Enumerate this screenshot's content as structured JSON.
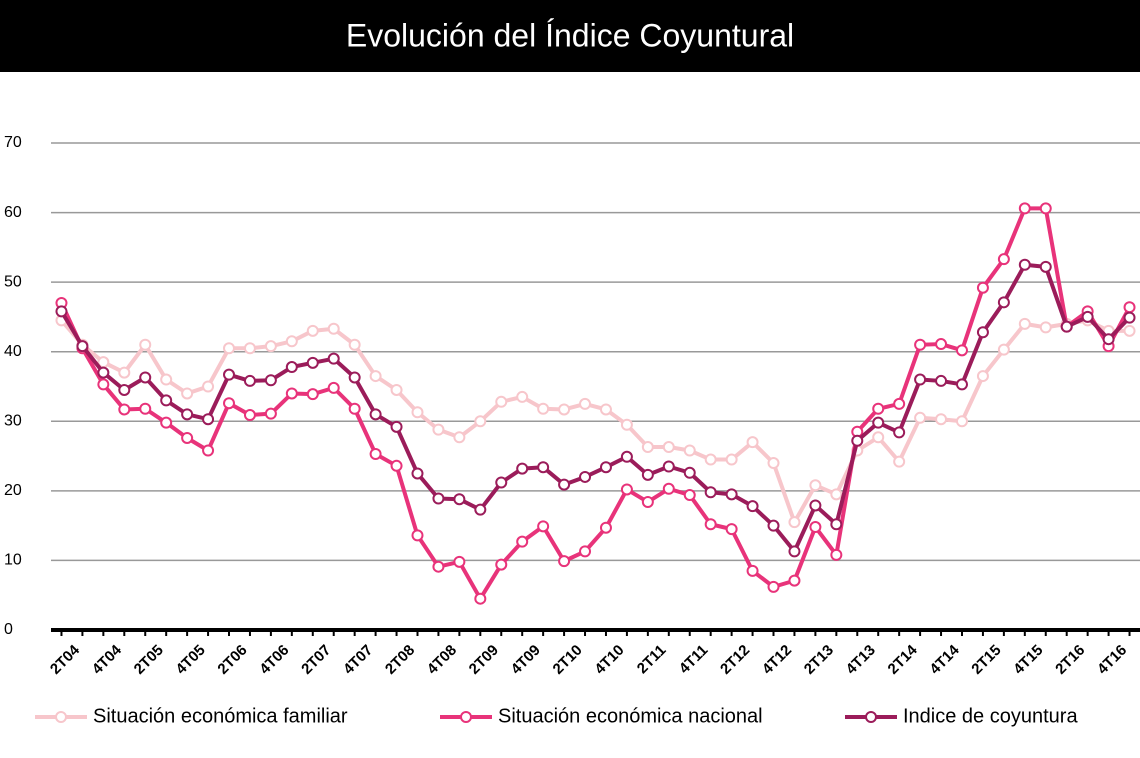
{
  "chart_data": {
    "type": "line",
    "title": "Evolución del Índice Coyuntural",
    "categories": [
      "2T04",
      null,
      "4T04",
      null,
      "2T05",
      null,
      "4T05",
      null,
      "2T06",
      null,
      "4T06",
      null,
      "2T07",
      null,
      "4T07",
      null,
      "2T08",
      null,
      "4T08",
      null,
      "2T09",
      null,
      "4T09",
      null,
      "2T10",
      null,
      "4T10",
      null,
      "2T11",
      null,
      "4T11",
      null,
      "2T12",
      null,
      "4T12",
      null,
      "2T13",
      null,
      "4T13",
      null,
      "2T14",
      null,
      "4T14",
      null,
      "2T15",
      null,
      "4T15",
      null,
      "2T16",
      null,
      "4T16",
      null
    ],
    "series": [
      {
        "name": "Situación económica familiar",
        "color": "#f7c6cb",
        "values": [
          44.5,
          41,
          38.5,
          37,
          41,
          36,
          34,
          35,
          40.5,
          40.5,
          40.8,
          41.5,
          43,
          43.3,
          41,
          36.5,
          34.5,
          31.3,
          28.8,
          27.7,
          30,
          32.8,
          33.5,
          31.8,
          31.7,
          32.5,
          31.7,
          29.5,
          26.3,
          26.3,
          25.8,
          24.5,
          24.5,
          27,
          24,
          15.5,
          20.8,
          19.5,
          25.8,
          27.7,
          24.2,
          30.5,
          30.3,
          30,
          36.5,
          40.3,
          44,
          43.5,
          44,
          44.5,
          43,
          43
        ]
      },
      {
        "name": "Situación económica nacional",
        "color": "#e8337a",
        "values": [
          47,
          40.5,
          35.3,
          31.7,
          31.8,
          29.8,
          27.6,
          25.8,
          32.6,
          30.9,
          31.1,
          34,
          33.9,
          34.8,
          31.8,
          25.3,
          23.6,
          13.6,
          9.1,
          9.8,
          4.5,
          9.4,
          12.7,
          14.9,
          9.9,
          11.3,
          14.7,
          20.2,
          18.4,
          20.3,
          19.4,
          15.2,
          14.5,
          8.5,
          6.2,
          7.1,
          14.8,
          10.8,
          28.5,
          31.8,
          32.5,
          41,
          41.1,
          40.2,
          49.2,
          53.3,
          60.6,
          60.6,
          43.6,
          45.8,
          40.8,
          46.4
        ]
      },
      {
        "name": "Indice de coyuntura",
        "color": "#9b1c5a",
        "values": [
          45.8,
          40.8,
          37,
          34.5,
          36.3,
          33,
          31,
          30.3,
          36.7,
          35.8,
          35.9,
          37.8,
          38.4,
          39,
          36.3,
          31,
          29.2,
          22.5,
          18.9,
          18.8,
          17.3,
          21.2,
          23.2,
          23.4,
          20.9,
          22,
          23.4,
          24.9,
          22.3,
          23.5,
          22.6,
          19.8,
          19.5,
          17.8,
          15,
          11.3,
          17.9,
          15.2,
          27.2,
          29.8,
          28.4,
          36,
          35.8,
          35.3,
          42.8,
          47.1,
          52.5,
          52.2,
          43.6,
          45,
          41.8,
          44.9
        ]
      }
    ],
    "ylim": [
      0,
      70
    ],
    "yticks": [
      0,
      10,
      20,
      30,
      40,
      50,
      60,
      70
    ],
    "grid": true
  }
}
